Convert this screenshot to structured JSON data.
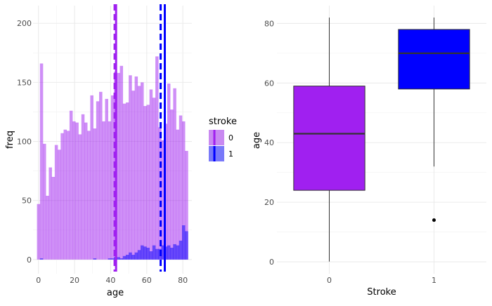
{
  "chart_data": [
    {
      "type": "histogram",
      "xlabel": "age",
      "ylabel": "freq",
      "xlim": [
        -3,
        85
      ],
      "ylim": [
        -12,
        215
      ],
      "x_ticks": [
        0,
        20,
        40,
        60,
        80
      ],
      "y_ticks": [
        0,
        50,
        100,
        150,
        200
      ],
      "grid": true,
      "legend_position": "right",
      "legend": {
        "title": "stroke",
        "entries": [
          {
            "label": "0",
            "color": "#a020f0",
            "opacity": 0.5
          },
          {
            "label": "1",
            "color": "#0000ff",
            "opacity": 0.5
          }
        ]
      },
      "bin_width": 1.64,
      "series": [
        {
          "name": "0",
          "color": "#a020f0",
          "bin_start": [
            -0.82,
            0.82,
            2.46,
            4.1,
            5.74,
            7.38,
            9.02,
            10.66,
            12.3,
            13.94,
            15.58,
            17.22,
            18.86,
            20.5,
            22.14,
            23.78,
            25.42,
            27.06,
            28.7,
            30.34,
            31.98,
            33.62,
            35.26,
            36.9,
            38.54,
            40.18,
            41.82,
            43.46,
            45.1,
            46.74,
            48.38,
            50.02,
            51.66,
            53.3,
            54.94,
            56.58,
            58.22,
            59.86,
            61.5,
            63.14,
            64.78,
            66.42,
            68.06,
            69.7,
            71.34,
            72.98,
            74.62,
            76.26,
            77.9,
            79.54,
            81.18
          ],
          "values": [
            47,
            166,
            98,
            54,
            78,
            70,
            97,
            93,
            107,
            110,
            109,
            126,
            117,
            116,
            106,
            123,
            116,
            109,
            139,
            111,
            134,
            142,
            117,
            136,
            117,
            139,
            159,
            158,
            164,
            132,
            133,
            156,
            143,
            155,
            147,
            150,
            130,
            131,
            144,
            137,
            172,
            112,
            101,
            115,
            149,
            127,
            145,
            110,
            122,
            117,
            92
          ],
          "mean": 42.2,
          "median": 43
        },
        {
          "name": "1",
          "color": "#0000ff",
          "bin_start": [
            0.82,
            30.34,
            38.54,
            40.18,
            41.82,
            43.46,
            45.1,
            46.74,
            48.38,
            50.02,
            51.66,
            53.3,
            54.94,
            56.58,
            58.22,
            59.86,
            61.5,
            63.14,
            64.78,
            66.42,
            68.06,
            69.7,
            71.34,
            72.98,
            74.62,
            76.26,
            77.9,
            79.54,
            81.18
          ],
          "values": [
            1,
            1,
            1,
            1,
            2,
            2,
            1,
            3,
            4,
            6,
            4,
            6,
            8,
            12,
            11,
            10,
            7,
            12,
            9,
            9,
            12,
            11,
            12,
            10,
            13,
            12,
            16,
            29,
            24
          ],
          "mean": 67.7,
          "median": 70
        }
      ]
    },
    {
      "type": "boxplot",
      "xlabel": "Stroke",
      "ylabel": "age",
      "categories": [
        "0",
        "1"
      ],
      "ylim": [
        -4,
        86
      ],
      "y_ticks": [
        0,
        20,
        40,
        60,
        80
      ],
      "grid": true,
      "boxes": [
        {
          "category": "0",
          "color": "#a020f0",
          "min": 0.08,
          "q1": 24,
          "median": 43,
          "q3": 59,
          "max": 82,
          "outliers": []
        },
        {
          "category": "1",
          "color": "#0000ff",
          "min": 32,
          "q1": 58,
          "median": 70,
          "q3": 78,
          "max": 82,
          "outliers": [
            14
          ]
        }
      ]
    }
  ]
}
